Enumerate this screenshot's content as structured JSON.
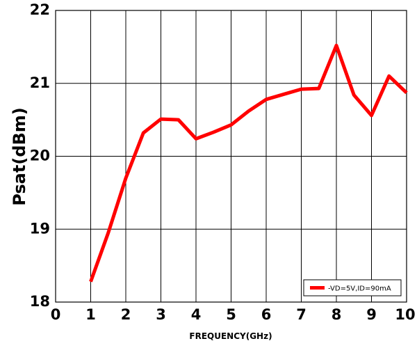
{
  "chart_data": {
    "type": "line",
    "title": "",
    "xlabel": "FREQUENCY(GHz)",
    "ylabel": "Psat(dBm)",
    "xlim": [
      0,
      10
    ],
    "ylim": [
      18,
      22
    ],
    "x_ticks": [
      0,
      1,
      2,
      3,
      4,
      5,
      6,
      7,
      8,
      9,
      10
    ],
    "y_ticks": [
      18,
      19,
      20,
      21,
      22
    ],
    "grid": true,
    "legend_position": "bottom-right",
    "series": [
      {
        "name": "-VD=5V,ID=90mA",
        "color": "#ff0000",
        "x": [
          1,
          1.5,
          2,
          2.5,
          3,
          3.5,
          4,
          4.5,
          5,
          5.5,
          6,
          6.5,
          7,
          7.5,
          8,
          8.5,
          9,
          9.5,
          10
        ],
        "y": [
          18.28,
          18.95,
          19.7,
          20.32,
          20.51,
          20.5,
          20.24,
          20.33,
          20.43,
          20.62,
          20.78,
          20.85,
          20.92,
          20.93,
          21.52,
          20.84,
          20.56,
          21.1,
          20.87
        ]
      }
    ]
  }
}
